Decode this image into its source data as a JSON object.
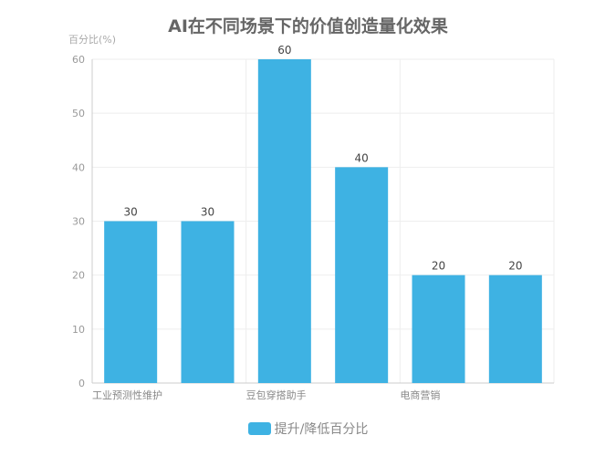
{
  "chart_data": {
    "type": "bar",
    "title": "AI在不同场景下的价值创造量化效果",
    "ylabel": "百分比(%)",
    "xlabel": "",
    "categories": [
      "工业预测性维护",
      "",
      "豆包穿搭助手",
      "",
      "电商营销",
      ""
    ],
    "series": [
      {
        "name": "提升/降低百分比",
        "values": [
          30,
          30,
          60,
          40,
          20,
          20
        ],
        "color": "#3eb2e3"
      }
    ],
    "ylim": [
      0,
      60
    ],
    "yticks": [
      0,
      10,
      20,
      30,
      40,
      50,
      60
    ],
    "grid": true,
    "legend_position": "bottom"
  }
}
